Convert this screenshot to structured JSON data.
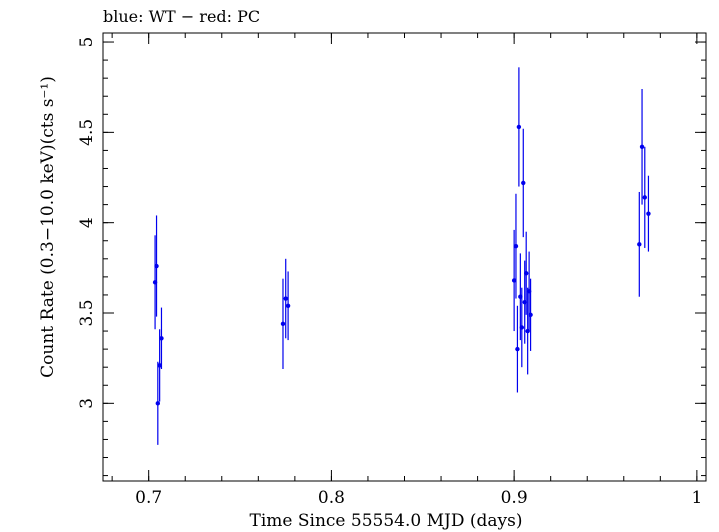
{
  "chart_data": {
    "type": "scatter",
    "title": "blue: WT − red: PC",
    "xlabel": "Time Since 55554.0 MJD (days)",
    "ylabel": "Count Rate (0.3−10.0 keV)(cts s⁻¹)",
    "xlim": [
      0.675,
      1.005
    ],
    "ylim": [
      2.57,
      5.05
    ],
    "x_ticks": [
      0.7,
      0.8,
      0.9,
      1.0
    ],
    "x_tick_labels": [
      "0.7",
      "0.8",
      "0.9",
      "1"
    ],
    "y_ticks": [
      3.0,
      3.5,
      4.0,
      4.5,
      5.0
    ],
    "y_tick_labels": [
      "3",
      "3.5",
      "4",
      "4.5",
      "5"
    ],
    "grid": false,
    "series": [
      {
        "color": "#0000ee",
        "points": [
          {
            "x": 0.7035,
            "y": 3.67,
            "err": 0.26
          },
          {
            "x": 0.7043,
            "y": 3.76,
            "err": 0.28
          },
          {
            "x": 0.705,
            "y": 3.0,
            "err": 0.23
          },
          {
            "x": 0.706,
            "y": 3.21,
            "err": 0.2
          },
          {
            "x": 0.707,
            "y": 3.36,
            "err": 0.17
          },
          {
            "x": 0.7735,
            "y": 3.44,
            "err": 0.25
          },
          {
            "x": 0.775,
            "y": 3.58,
            "err": 0.22
          },
          {
            "x": 0.7763,
            "y": 3.54,
            "err": 0.19
          },
          {
            "x": 0.9,
            "y": 3.68,
            "err": 0.28
          },
          {
            "x": 0.901,
            "y": 3.87,
            "err": 0.29
          },
          {
            "x": 0.9018,
            "y": 3.3,
            "err": 0.24
          },
          {
            "x": 0.9026,
            "y": 4.53,
            "err": 0.33
          },
          {
            "x": 0.9034,
            "y": 3.59,
            "err": 0.24
          },
          {
            "x": 0.9042,
            "y": 3.42,
            "err": 0.22
          },
          {
            "x": 0.905,
            "y": 4.22,
            "err": 0.3
          },
          {
            "x": 0.9058,
            "y": 3.56,
            "err": 0.23
          },
          {
            "x": 0.9066,
            "y": 3.72,
            "err": 0.23
          },
          {
            "x": 0.9074,
            "y": 3.4,
            "err": 0.24
          },
          {
            "x": 0.9082,
            "y": 3.62,
            "err": 0.22
          },
          {
            "x": 0.909,
            "y": 3.49,
            "err": 0.2
          },
          {
            "x": 0.9685,
            "y": 3.88,
            "err": 0.29
          },
          {
            "x": 0.97,
            "y": 4.42,
            "err": 0.32
          },
          {
            "x": 0.9715,
            "y": 4.14,
            "err": 0.28
          },
          {
            "x": 0.9735,
            "y": 4.05,
            "err": 0.21
          }
        ]
      }
    ]
  }
}
